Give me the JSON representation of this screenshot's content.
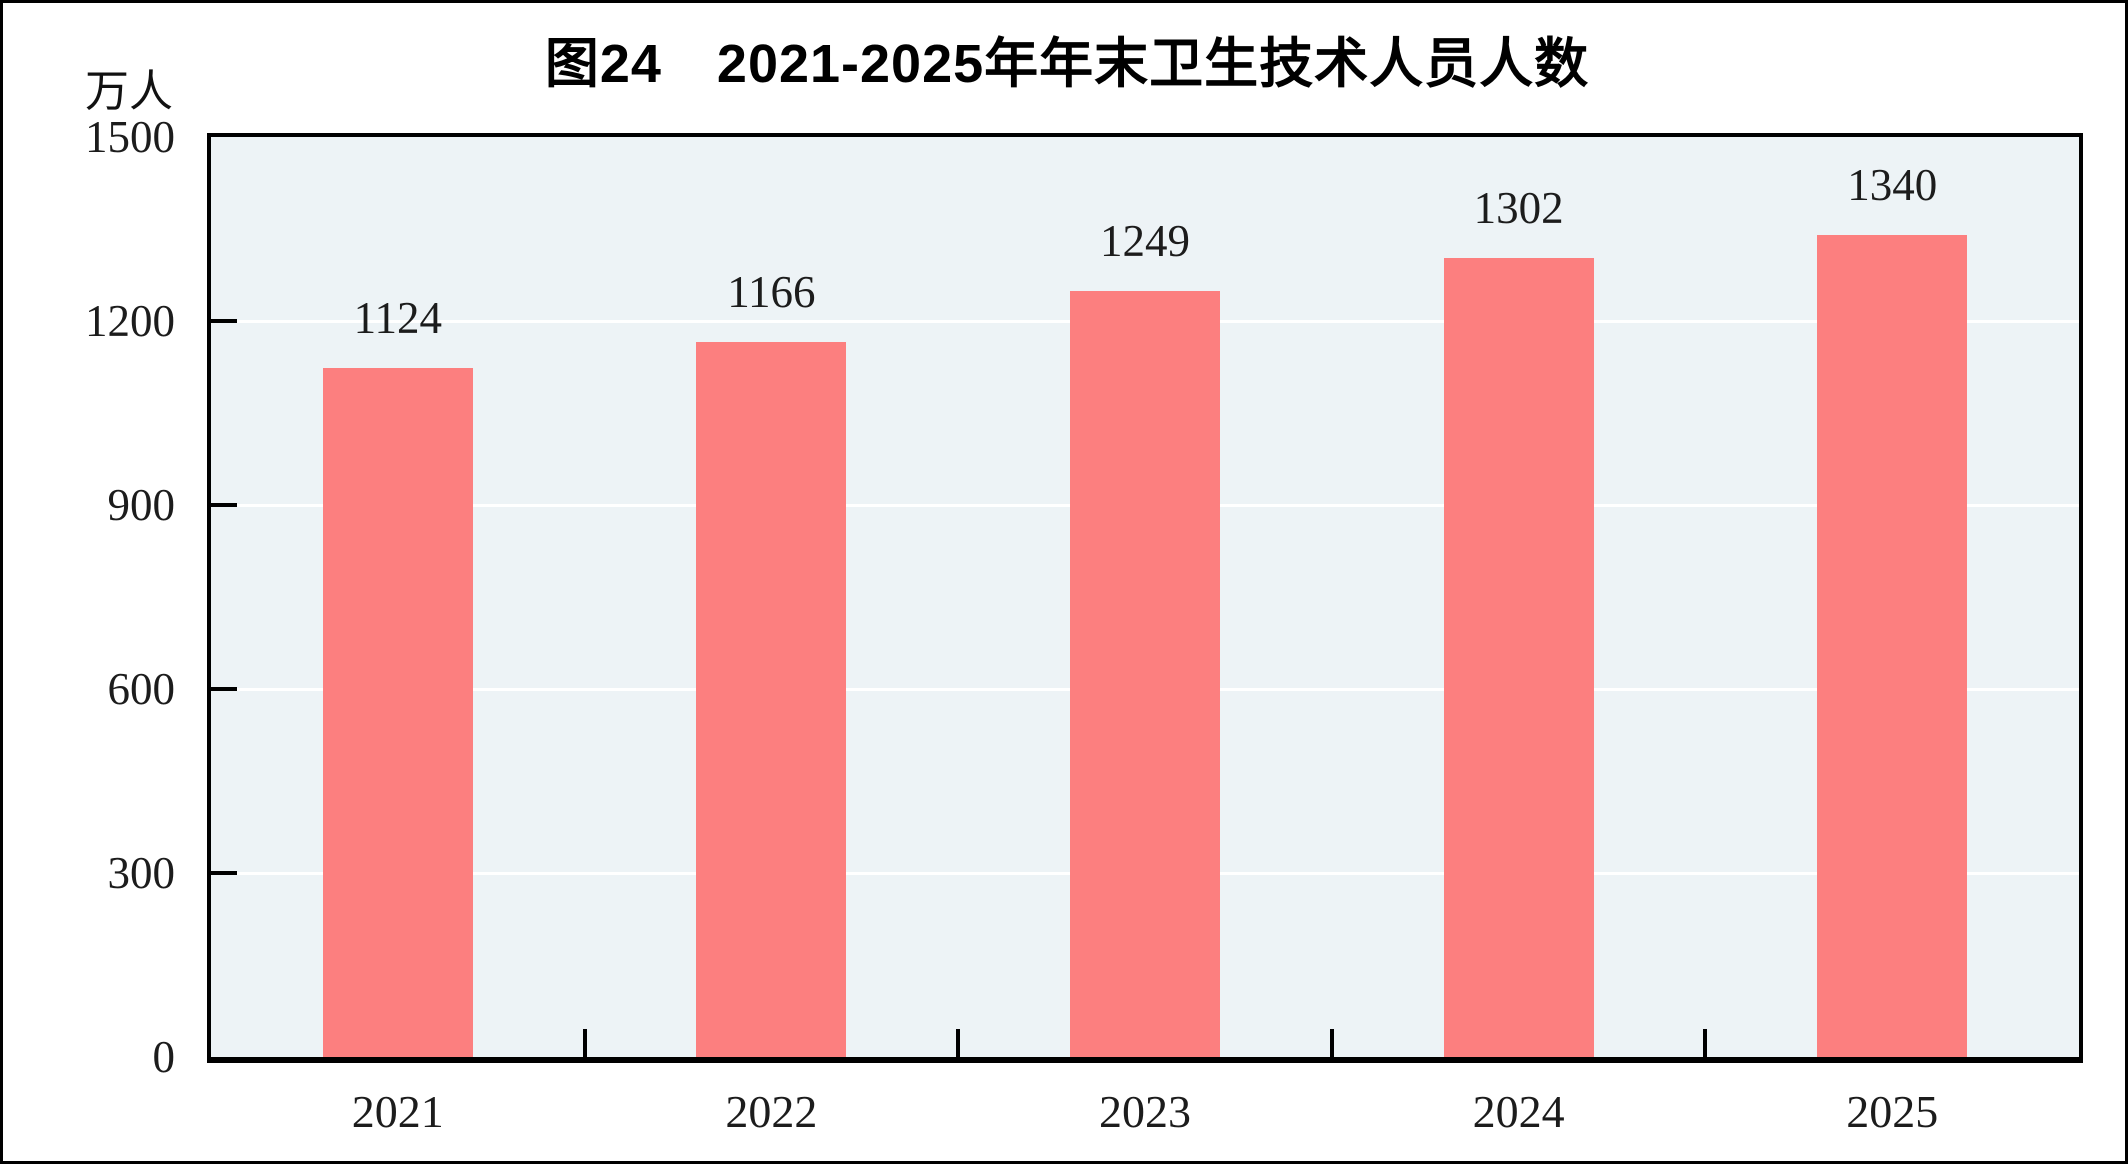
{
  "chart": {
    "title": "图24　2021-2025年年末卫生技术人员人数",
    "unit_label": "万人"
  },
  "chart_data": {
    "type": "bar",
    "categories": [
      "2021",
      "2022",
      "2023",
      "2024",
      "2025"
    ],
    "values": [
      1124,
      1166,
      1249,
      1302,
      1340
    ],
    "title": "图24　2021-2025年年末卫生技术人员人数",
    "xlabel": "",
    "ylabel": "万人",
    "ylim": [
      0,
      1500
    ],
    "yticks": [
      0,
      300,
      600,
      900,
      1200,
      1500
    ],
    "grid": "horizontal",
    "legend": "none",
    "data_labels": true,
    "bar_color": "#FC7F7F",
    "plot_bg": "#EDF3F6",
    "gridline_color": "#FFFFFF",
    "axis_color": "#000000",
    "text_color": "#1C1C1C"
  }
}
